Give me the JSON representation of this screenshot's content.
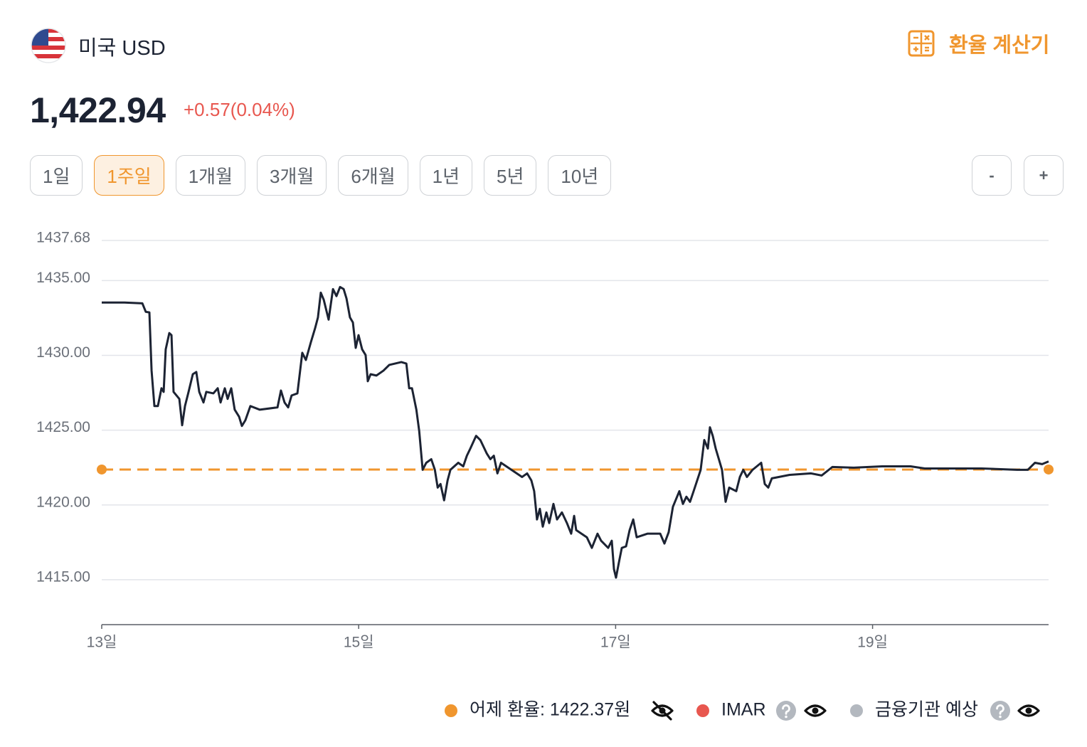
{
  "header": {
    "currency": "미국 USD",
    "calculator": "환율 계산기"
  },
  "price": {
    "value": "1,422.94",
    "change": "+0.57(0.04%)"
  },
  "periods": [
    "1일",
    "1주일",
    "1개월",
    "3개월",
    "6개월",
    "1년",
    "5년",
    "10년"
  ],
  "active_period": 1,
  "zoom": [
    "-",
    "+"
  ],
  "chart_data": {
    "type": "line",
    "color": "#1c2333",
    "xlim": [
      13,
      20.37
    ],
    "ylim": [
      1412.0,
      1437.68
    ],
    "xticks": [
      {
        "value": 13,
        "label": "13일"
      },
      {
        "value": 15,
        "label": "15일"
      },
      {
        "value": 17,
        "label": "17일"
      },
      {
        "value": 19,
        "label": "19일"
      }
    ],
    "yticks": [
      1437.68,
      {
        "value": 1435,
        "label": "1435.00"
      },
      {
        "value": 1430,
        "label": "1430.00"
      },
      {
        "value": 1425,
        "label": "1425.00"
      },
      {
        "value": 1420,
        "label": "1420.00"
      },
      {
        "value": 1415,
        "label": "1415.00"
      }
    ],
    "grid": true,
    "x": [
      13.0,
      13.177,
      13.316,
      13.343,
      13.371,
      13.388,
      13.41,
      13.437,
      13.465,
      13.482,
      13.498,
      13.526,
      13.543,
      13.559,
      13.604,
      13.626,
      13.648,
      13.676,
      13.709,
      13.736,
      13.759,
      13.792,
      13.814,
      13.869,
      13.903,
      13.925,
      13.958,
      13.98,
      14.008,
      14.035,
      14.069,
      14.091,
      14.118,
      14.157,
      14.229,
      14.368,
      14.395,
      14.423,
      14.451,
      14.478,
      14.523,
      14.561,
      14.589,
      14.628,
      14.661,
      14.683,
      14.705,
      14.728,
      14.766,
      14.8,
      14.827,
      14.855,
      14.883,
      14.905,
      14.932,
      14.955,
      14.977,
      14.999,
      15.027,
      15.054,
      15.071,
      15.093,
      15.138,
      15.193,
      15.238,
      15.332,
      15.371,
      15.393,
      15.415,
      15.449,
      15.471,
      15.498,
      15.526,
      15.565,
      15.593,
      15.615,
      15.637,
      15.665,
      15.692,
      15.714,
      15.775,
      15.814,
      15.842,
      15.869,
      15.914,
      15.947,
      15.997,
      16.025,
      16.052,
      16.08,
      16.108,
      16.189,
      16.272,
      16.311,
      16.344,
      16.366,
      16.388,
      16.41,
      16.433,
      16.461,
      16.483,
      16.516,
      16.544,
      16.582,
      16.621,
      16.654,
      16.677,
      16.693,
      16.776,
      16.815,
      16.859,
      16.887,
      16.942,
      16.97,
      16.987,
      17.003,
      17.026,
      17.048,
      17.081,
      17.109,
      17.137,
      17.164,
      17.247,
      17.347,
      17.38,
      17.413,
      17.446,
      17.496,
      17.524,
      17.551,
      17.579,
      17.607,
      17.662,
      17.69,
      17.718,
      17.734,
      17.756,
      17.779,
      17.828,
      17.856,
      17.884,
      17.939,
      17.967,
      17.994,
      18.022,
      18.066,
      18.133,
      18.161,
      18.188,
      18.216,
      18.354,
      18.521,
      18.604,
      18.687,
      18.853,
      19.074,
      19.296,
      19.406,
      19.628,
      19.849,
      20.126,
      20.209,
      20.264,
      20.32,
      20.37
    ],
    "values": [
      1433.53,
      1433.53,
      1433.48,
      1432.91,
      1432.87,
      1428.98,
      1426.61,
      1426.61,
      1427.8,
      1427.56,
      1430.4,
      1431.49,
      1431.35,
      1427.56,
      1427.09,
      1425.33,
      1426.61,
      1427.56,
      1428.74,
      1428.89,
      1427.56,
      1426.85,
      1427.56,
      1427.46,
      1427.8,
      1426.85,
      1427.8,
      1427.09,
      1427.8,
      1426.37,
      1425.9,
      1425.28,
      1425.66,
      1426.61,
      1426.37,
      1426.52,
      1427.65,
      1426.85,
      1426.52,
      1427.32,
      1427.46,
      1430.17,
      1429.69,
      1430.88,
      1431.82,
      1432.54,
      1434.19,
      1433.72,
      1432.39,
      1434.43,
      1433.96,
      1434.57,
      1434.43,
      1433.81,
      1432.54,
      1432.2,
      1430.5,
      1431.35,
      1430.4,
      1430.02,
      1428.27,
      1428.74,
      1428.65,
      1428.98,
      1429.36,
      1429.55,
      1429.45,
      1427.8,
      1427.8,
      1426.37,
      1424.95,
      1422.35,
      1422.82,
      1423.06,
      1422.35,
      1421.16,
      1421.4,
      1420.31,
      1421.64,
      1422.35,
      1422.82,
      1422.58,
      1423.29,
      1423.77,
      1424.62,
      1424.34,
      1423.44,
      1423.06,
      1423.29,
      1422.11,
      1422.82,
      1422.35,
      1421.87,
      1422.11,
      1421.64,
      1420.92,
      1419.03,
      1419.74,
      1418.55,
      1419.5,
      1418.79,
      1420.07,
      1419.03,
      1419.5,
      1418.79,
      1418.08,
      1419.27,
      1418.32,
      1417.84,
      1417.13,
      1418.08,
      1417.61,
      1417.13,
      1417.61,
      1415.71,
      1415.14,
      1416.18,
      1417.13,
      1417.23,
      1418.32,
      1419.03,
      1417.84,
      1418.08,
      1418.08,
      1417.42,
      1418.18,
      1419.88,
      1420.92,
      1420.07,
      1420.55,
      1420.21,
      1420.92,
      1422.35,
      1424.34,
      1423.77,
      1425.19,
      1424.62,
      1423.77,
      1422.35,
      1420.21,
      1421.16,
      1420.92,
      1421.87,
      1422.35,
      1421.87,
      1422.35,
      1422.82,
      1421.4,
      1421.16,
      1421.78,
      1422.01,
      1422.11,
      1421.97,
      1422.54,
      1422.49,
      1422.58,
      1422.58,
      1422.44,
      1422.44,
      1422.44,
      1422.35,
      1422.35,
      1422.82,
      1422.73,
      1422.91
    ],
    "reference": {
      "value": 1422.37,
      "color": "#f0962e"
    },
    "legend": [
      {
        "label": "어제 환율: 1422.37원",
        "color": "#f0962e"
      },
      {
        "label": "IMAR",
        "color": "#e8574f"
      },
      {
        "label": "금융기관 예상",
        "color": "#b3b8bf"
      }
    ]
  }
}
